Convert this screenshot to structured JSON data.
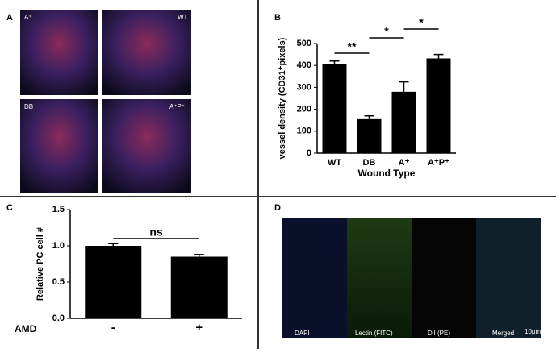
{
  "panels": [
    {
      "label": "A",
      "image_labels": [
        "A⁺",
        "WT",
        "DB",
        "A⁺P⁺"
      ]
    },
    {
      "label": "B"
    },
    {
      "label": "C"
    },
    {
      "label": "D",
      "image_labels": [
        "DAPI",
        "Lectin (FITC)",
        "DiI (PE)",
        "Merged"
      ],
      "scale": "10μm"
    }
  ],
  "chart_data": [
    {
      "type": "bar",
      "categories": [
        "WT",
        "DB",
        "A⁺",
        "A⁺P⁺"
      ],
      "values": [
        405,
        155,
        280,
        432
      ],
      "errors": [
        15,
        15,
        45,
        18
      ],
      "color": "#000000",
      "y_label": "vessel density (CD31⁺pixels)",
      "x_label": "Wound Type",
      "ylim": [
        0,
        500
      ],
      "yticks": [
        0,
        100,
        200,
        300,
        400,
        500
      ],
      "annotations": [
        "**",
        "*",
        "*"
      ]
    },
    {
      "type": "bar",
      "categories": [
        "-",
        "+"
      ],
      "values": [
        1.0,
        0.85
      ],
      "errors": [
        0.03,
        0.03
      ],
      "color": "#000000",
      "y_label": "Relative PC cell #",
      "x_label": "AMD",
      "ylim": [
        0,
        1.5
      ],
      "yticks": [
        {
          "value": 0,
          "label": "0.0"
        },
        0.5,
        {
          "value": 1,
          "label": "1.0"
        },
        1.5
      ],
      "annotations": [
        "ns"
      ]
    }
  ]
}
